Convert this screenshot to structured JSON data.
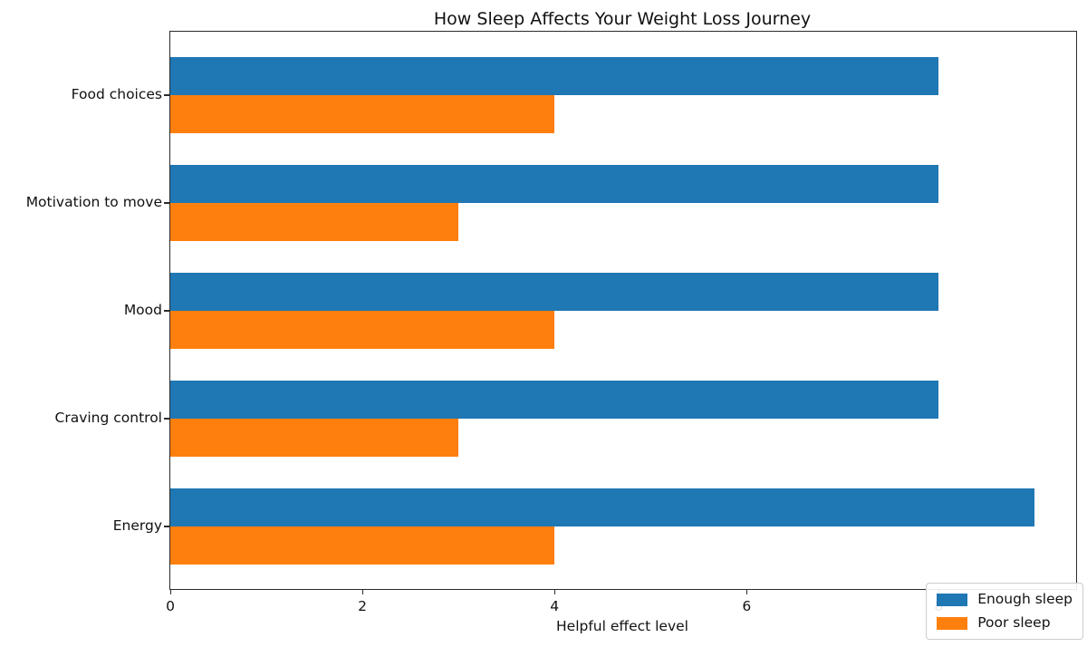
{
  "chart_data": {
    "type": "bar",
    "orientation": "horizontal",
    "title": "How Sleep Affects Your Weight Loss Journey",
    "xlabel": "Helpful effect level",
    "ylabel": "",
    "categories": [
      "Food choices",
      "Motivation to move",
      "Mood",
      "Craving control",
      "Energy"
    ],
    "series": [
      {
        "name": "Enough sleep",
        "color": "#1f77b4",
        "values": [
          8,
          8,
          8,
          8,
          9
        ]
      },
      {
        "name": "Poor sleep",
        "color": "#ff7f0e",
        "values": [
          4,
          3,
          4,
          3,
          4
        ]
      }
    ],
    "xticks": [
      0,
      2,
      4,
      6,
      8
    ],
    "xlim": [
      0,
      9.43
    ],
    "grid": false,
    "legend_position": "lower right",
    "plot_background": "#ffffff",
    "spine_color": "#2b2b2b"
  }
}
